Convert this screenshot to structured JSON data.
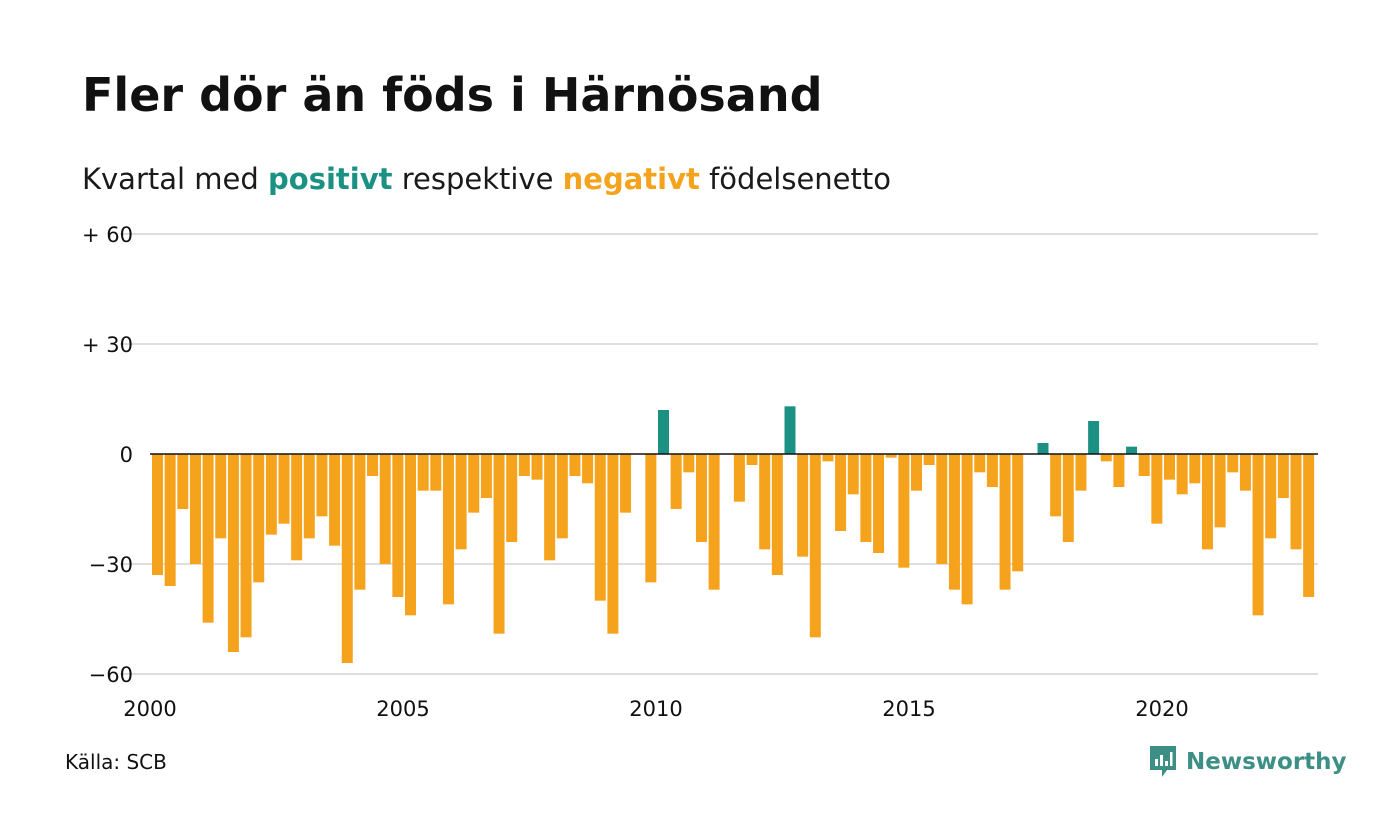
{
  "title": "Fler dör än föds i Härnösand",
  "subtitle": {
    "prefix": "Kvartal med ",
    "positive": "positivt",
    "middle": " respektive ",
    "negative": "negativt",
    "suffix": " födelsenetto"
  },
  "source": "Källa: SCB",
  "brand": {
    "name": "Newsworthy",
    "icon": "newsworthy-logo-icon",
    "color": "#3d8f86"
  },
  "colors": {
    "positive": "#1b9183",
    "negative": "#f5a21c",
    "grid": "#dedede",
    "zero": "#111111"
  },
  "chart_data": {
    "type": "bar",
    "xlabel": "",
    "ylabel": "",
    "ylim": [
      -60,
      60
    ],
    "yticks": [
      {
        "value": 60,
        "label": "+ 60"
      },
      {
        "value": 30,
        "label": "+ 30"
      },
      {
        "value": 0,
        "label": "0"
      },
      {
        "value": -30,
        "label": "−30"
      },
      {
        "value": -60,
        "label": "−60"
      }
    ],
    "xticks": [
      "2000",
      "2005",
      "2010",
      "2015",
      "2020"
    ],
    "start": "2000 Q1",
    "grid": true,
    "values": [
      -33,
      -36,
      -15,
      -30,
      -46,
      -23,
      -54,
      -50,
      -35,
      -22,
      -19,
      -29,
      -23,
      -17,
      -25,
      -57,
      -37,
      -6,
      -30,
      -39,
      -44,
      -10,
      -10,
      -41,
      -26,
      -16,
      -12,
      -49,
      -24,
      -6,
      -7,
      -29,
      -23,
      -6,
      -8,
      -40,
      -49,
      -16,
      0,
      -35,
      12,
      -15,
      -5,
      -24,
      -37,
      0,
      -13,
      -3,
      -26,
      -33,
      13,
      -28,
      -50,
      -2,
      -21,
      -11,
      -24,
      -27,
      -1,
      -31,
      -10,
      -3,
      -30,
      -37,
      -41,
      -5,
      -9,
      -37,
      -32,
      0,
      3,
      -17,
      -24,
      -10,
      9,
      -2,
      -9,
      2,
      -6,
      -19,
      -7,
      -11,
      -8,
      -26,
      -20,
      -5,
      -10,
      -44,
      -23,
      -12,
      -26,
      -39
    ]
  }
}
